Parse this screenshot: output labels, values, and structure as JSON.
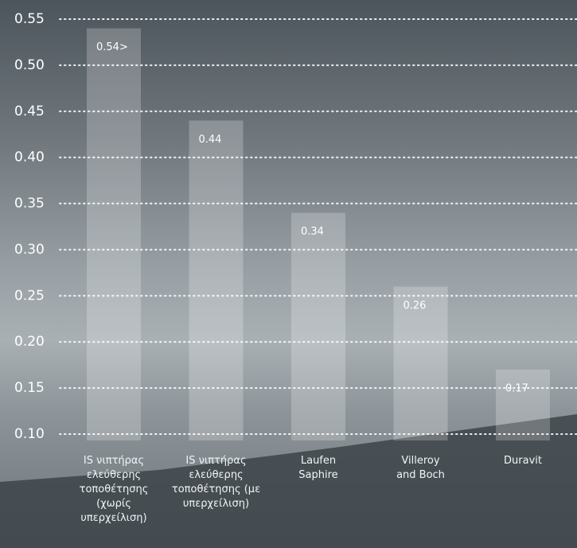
{
  "chart_data": {
    "type": "bar",
    "categories": [
      "IS νιπτήρας ελεύθερης τοποθέτησης (χωρίς υπερχείλιση)",
      "IS νιπτήρας ελεύθερης τοποθέτησης (με υπερχείλιση)",
      "Laufen Saphire",
      "Villeroy and Boch",
      "Duravit"
    ],
    "values": [
      0.54,
      0.44,
      0.34,
      0.26,
      0.17
    ],
    "value_labels": [
      "0.54>",
      "0.44",
      "0.34",
      "0.26",
      "0.17"
    ],
    "color": "#ffffff",
    "ylim": [
      0.1,
      0.55
    ],
    "yticks": [
      {
        "value": 0.1,
        "label": "0.10"
      },
      0.15,
      {
        "value": 0.2,
        "label": "0.20"
      },
      0.25,
      {
        "value": 0.3,
        "label": "0.30"
      },
      0.35,
      {
        "value": 0.4,
        "label": "0.40"
      },
      0.45,
      {
        "value": 0.5,
        "label": "0.50"
      },
      0.55
    ],
    "grid": true
  }
}
